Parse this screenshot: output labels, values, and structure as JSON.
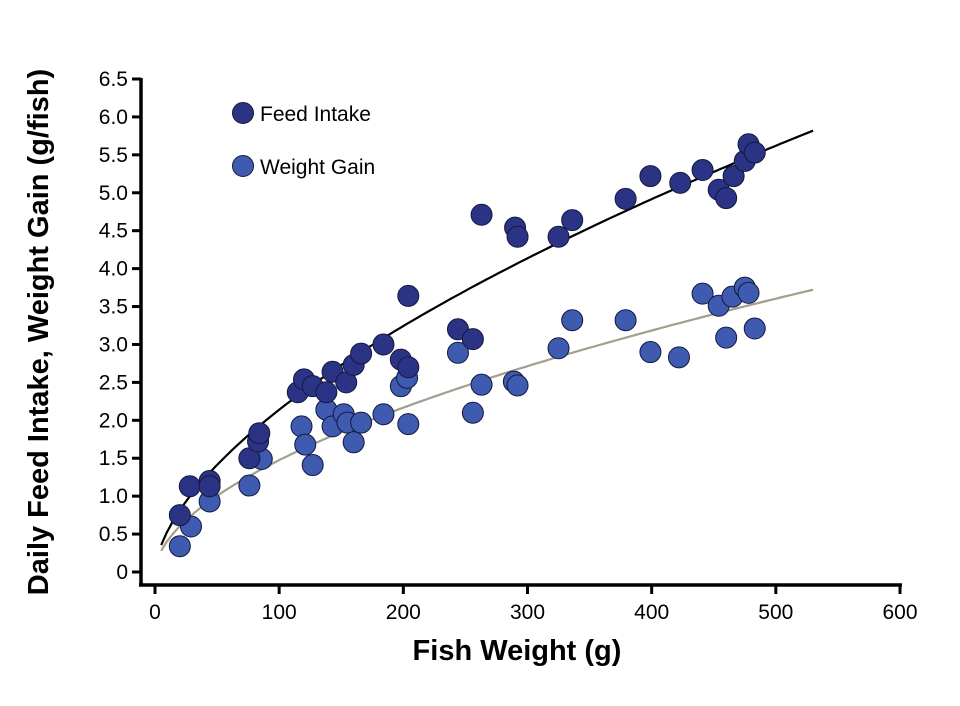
{
  "chart_data": {
    "type": "scatter",
    "title": "",
    "xlabel": "Fish Weight (g)",
    "ylabel": "Daily Feed Intake, Weight Gain (g/fish)",
    "xlim": [
      0,
      600
    ],
    "ylim": [
      0,
      6.5
    ],
    "xticks": [
      "0",
      "100",
      "200",
      "300",
      "400",
      "500",
      "600"
    ],
    "yticks": [
      "0",
      "0.5",
      "1.0",
      "1.5",
      "2.0",
      "2.5",
      "3.0",
      "3.5",
      "4.0",
      "4.5",
      "5.0",
      "5.5",
      "6.0",
      "6.5"
    ],
    "grid": false,
    "legend_position": "top-left",
    "series": [
      {
        "name": "Feed Intake",
        "color": "#2b3384",
        "trend_color": "#000000",
        "trend": {
          "form": "power",
          "a": 0.135,
          "b": 0.6,
          "x_range": [
            5,
            530
          ]
        },
        "points": [
          [
            20,
            0.75
          ],
          [
            28,
            1.13
          ],
          [
            44,
            1.2
          ],
          [
            44,
            1.13
          ],
          [
            76,
            1.5
          ],
          [
            83,
            1.72
          ],
          [
            84,
            1.83
          ],
          [
            115,
            2.37
          ],
          [
            120,
            2.54
          ],
          [
            127,
            2.45
          ],
          [
            138,
            2.37
          ],
          [
            143,
            2.64
          ],
          [
            154,
            2.5
          ],
          [
            160,
            2.73
          ],
          [
            166,
            2.88
          ],
          [
            184,
            3.0
          ],
          [
            198,
            2.8
          ],
          [
            204,
            2.7
          ],
          [
            204,
            3.64
          ],
          [
            244,
            3.2
          ],
          [
            256,
            3.07
          ],
          [
            263,
            4.71
          ],
          [
            290,
            4.54
          ],
          [
            292,
            4.42
          ],
          [
            325,
            4.42
          ],
          [
            336,
            4.64
          ],
          [
            379,
            4.92
          ],
          [
            399,
            5.22
          ],
          [
            423,
            5.13
          ],
          [
            441,
            5.3
          ],
          [
            454,
            5.04
          ],
          [
            460,
            4.93
          ],
          [
            466,
            5.22
          ],
          [
            475,
            5.42
          ],
          [
            478,
            5.64
          ],
          [
            483,
            5.53
          ]
        ]
      },
      {
        "name": "Weight Gain",
        "color": "#3e5bb0",
        "trend_color": "#a39e8e",
        "trend": {
          "form": "power",
          "a": 0.1145,
          "b": 0.555,
          "x_range": [
            5,
            530
          ]
        },
        "points": [
          [
            20,
            0.34
          ],
          [
            29,
            0.6
          ],
          [
            44,
            0.93
          ],
          [
            76,
            1.14
          ],
          [
            86,
            1.49
          ],
          [
            118,
            1.92
          ],
          [
            121,
            1.68
          ],
          [
            127,
            1.41
          ],
          [
            138,
            2.14
          ],
          [
            143,
            1.92
          ],
          [
            152,
            2.08
          ],
          [
            155,
            1.97
          ],
          [
            160,
            1.71
          ],
          [
            166,
            1.97
          ],
          [
            184,
            2.08
          ],
          [
            198,
            2.45
          ],
          [
            203,
            2.56
          ],
          [
            204,
            1.95
          ],
          [
            244,
            2.89
          ],
          [
            256,
            2.1
          ],
          [
            263,
            2.47
          ],
          [
            289,
            2.51
          ],
          [
            292,
            2.46
          ],
          [
            325,
            2.95
          ],
          [
            336,
            3.32
          ],
          [
            379,
            3.32
          ],
          [
            399,
            2.9
          ],
          [
            422,
            2.83
          ],
          [
            441,
            3.67
          ],
          [
            454,
            3.51
          ],
          [
            460,
            3.09
          ],
          [
            465,
            3.63
          ],
          [
            475,
            3.75
          ],
          [
            478,
            3.68
          ],
          [
            483,
            3.21
          ]
        ]
      }
    ]
  }
}
